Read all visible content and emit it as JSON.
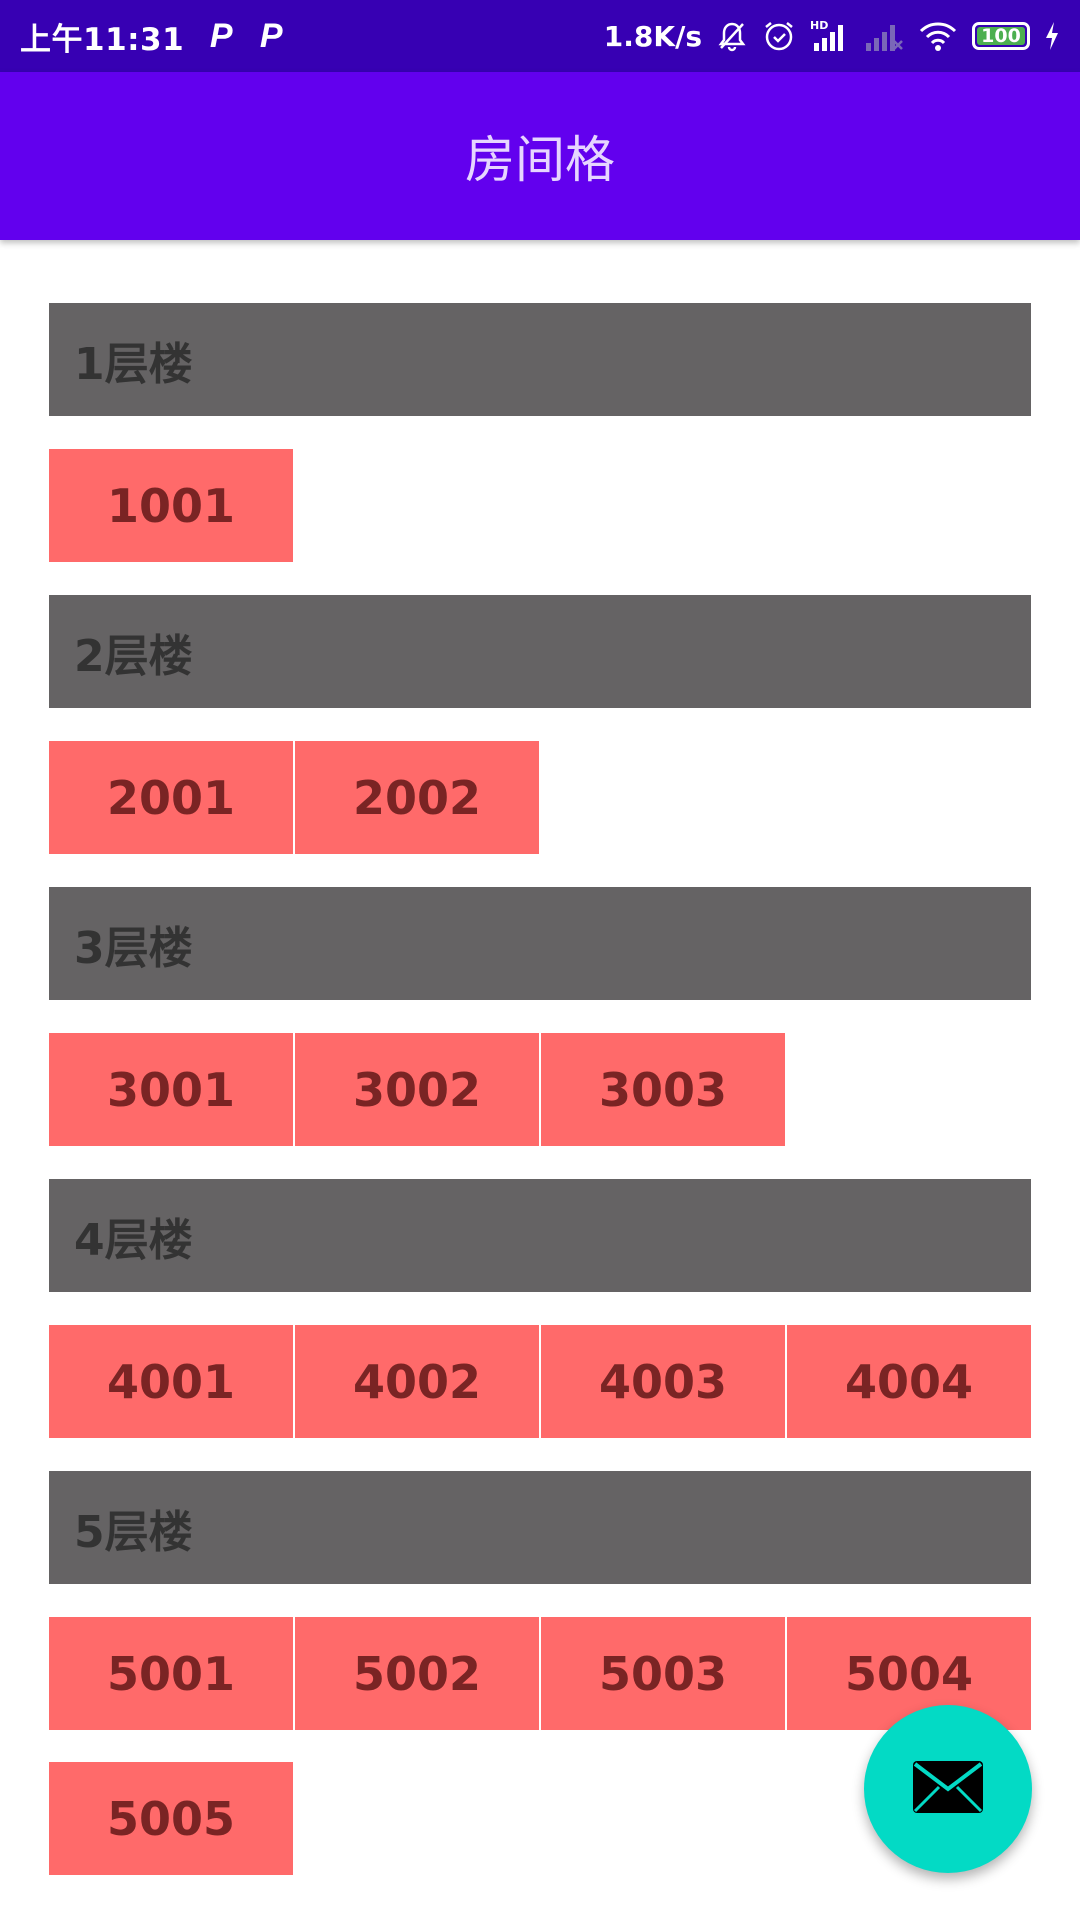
{
  "status_bar": {
    "time": "上午11:31",
    "left_icons": [
      "P",
      "P"
    ],
    "network_speed": "1.8K/s",
    "battery_level": "100",
    "icons": [
      "bell-muted-icon",
      "alarm-icon",
      "hd-signal-icon",
      "signal-icon",
      "wifi-icon",
      "battery-icon",
      "charging-icon"
    ]
  },
  "app_bar": {
    "title": "房间格"
  },
  "floors": [
    {
      "label": "1层楼",
      "rooms": [
        "1001"
      ]
    },
    {
      "label": "2层楼",
      "rooms": [
        "2001",
        "2002"
      ]
    },
    {
      "label": "3层楼",
      "rooms": [
        "3001",
        "3002",
        "3003"
      ]
    },
    {
      "label": "4层楼",
      "rooms": [
        "4001",
        "4002",
        "4003",
        "4004"
      ]
    },
    {
      "label": "5层楼",
      "rooms": [
        "5001",
        "5002",
        "5003",
        "5004",
        "5005"
      ]
    }
  ],
  "fab": {
    "icon": "mail-icon"
  },
  "colors": {
    "status_bar": "#3700b3",
    "app_bar": "#6200ee",
    "floor_header": "#656364",
    "room": "#ff6a6a",
    "fab": "#03dac5"
  }
}
